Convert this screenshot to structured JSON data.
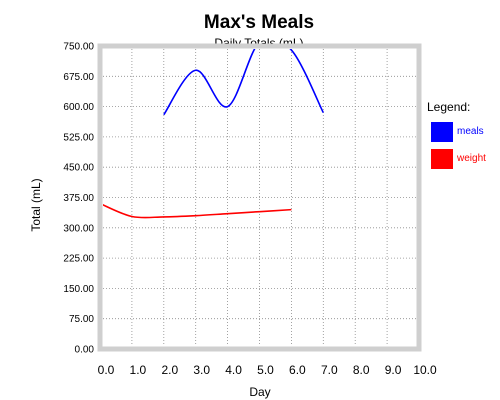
{
  "chart_data": {
    "type": "line",
    "title": "Max's Meals",
    "subtitle": "Daily Totals (mL)",
    "xlabel": "Day",
    "ylabel": "Total (mL)",
    "xlim": [
      0,
      10
    ],
    "ylim": [
      0,
      750
    ],
    "x_ticks": [
      "0.0",
      "1.0",
      "2.0",
      "3.0",
      "4.0",
      "5.0",
      "6.0",
      "7.0",
      "8.0",
      "9.0",
      "10.0"
    ],
    "y_ticks": [
      "0.00",
      "75.00",
      "150.00",
      "225.00",
      "300.00",
      "375.00",
      "450.00",
      "525.00",
      "600.00",
      "675.00",
      "750.00"
    ],
    "grid": true,
    "legend": {
      "title": "Legend:",
      "placement": "right"
    },
    "series": [
      {
        "name": "meals",
        "color": "#0000ff",
        "x": [
          2,
          3,
          4,
          5,
          6,
          7
        ],
        "y": [
          580,
          690,
          600,
          760,
          740,
          585
        ]
      },
      {
        "name": "weight",
        "color": "#ff0000",
        "x": [
          0,
          1,
          2,
          3,
          4,
          5,
          6
        ],
        "y": [
          360,
          328,
          327,
          330,
          335,
          340,
          345
        ]
      }
    ]
  }
}
